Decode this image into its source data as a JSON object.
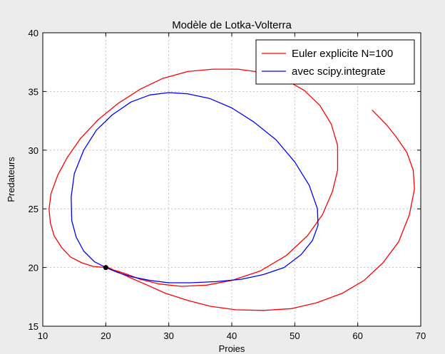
{
  "chart_data": {
    "type": "line",
    "title": "Modèle de Lotka-Volterra",
    "xlabel": "Proies",
    "ylabel": "Predateurs",
    "xlim": [
      10,
      70
    ],
    "ylim": [
      15,
      40
    ],
    "xticks": [
      10,
      20,
      30,
      40,
      50,
      60,
      70
    ],
    "yticks": [
      15,
      20,
      25,
      30,
      35,
      40
    ],
    "grid": true,
    "legend_position": "top-right",
    "series": [
      {
        "name": "Euler explicite N=100",
        "color": "#ff0000",
        "x": [
          20.0,
          18.0,
          16.2,
          14.4,
          13.0,
          11.8,
          11.2,
          11.0,
          11.3,
          12.4,
          13.9,
          16.0,
          18.8,
          22.0,
          25.5,
          29.0,
          33.0,
          37.0,
          41.0,
          45.0,
          48.5,
          51.5,
          54.0,
          55.8,
          56.8,
          56.8,
          56.0,
          54.4,
          52.0,
          48.6,
          44.5,
          40.0,
          36.0,
          32.0,
          28.5,
          25.5,
          23.0,
          21.2,
          20.4,
          20.1,
          20.7,
          22.0,
          24.0,
          26.6,
          29.5,
          33.0,
          36.6,
          40.6,
          45.0,
          49.5,
          53.5,
          57.5,
          61.0,
          64.0,
          66.5,
          68.2,
          69.0,
          68.8,
          67.8,
          66.0,
          64.5,
          62.3
        ],
        "y": [
          20.0,
          20.1,
          20.4,
          20.9,
          21.7,
          22.7,
          23.8,
          25.0,
          26.3,
          27.9,
          29.4,
          31.0,
          32.6,
          34.0,
          35.2,
          36.1,
          36.7,
          36.9,
          36.9,
          36.6,
          36.0,
          35.1,
          33.8,
          32.2,
          30.4,
          28.3,
          26.5,
          24.5,
          22.7,
          21.0,
          19.7,
          18.9,
          18.5,
          18.4,
          18.6,
          19.0,
          19.5,
          19.8,
          20.0,
          20.0,
          19.9,
          19.6,
          19.1,
          18.5,
          17.8,
          17.2,
          16.7,
          16.4,
          16.35,
          16.5,
          17.0,
          17.8,
          18.9,
          20.4,
          22.2,
          24.5,
          26.7,
          28.3,
          29.8,
          31.2,
          32.2,
          33.4
        ]
      },
      {
        "name": "avec scipy.integrate",
        "color": "#0000ff",
        "x": [
          20.0,
          18.2,
          16.5,
          15.3,
          14.6,
          14.5,
          15.0,
          16.5,
          18.5,
          21.0,
          24.0,
          27.0,
          30.0,
          33.0,
          36.5,
          40.0,
          43.5,
          47.0,
          50.0,
          52.3,
          53.6,
          53.7,
          52.8,
          51.0,
          48.3,
          45.0,
          41.5,
          37.5,
          33.5,
          30.0,
          27.0,
          24.2,
          21.8,
          20.0
        ],
        "y": [
          20.0,
          20.5,
          21.4,
          22.6,
          24.0,
          26.0,
          28.0,
          30.0,
          31.7,
          33.0,
          34.1,
          34.7,
          34.9,
          34.8,
          34.4,
          33.6,
          32.4,
          30.9,
          29.0,
          27.0,
          25.0,
          23.6,
          22.3,
          21.1,
          20.0,
          19.4,
          19.0,
          18.8,
          18.7,
          18.7,
          18.9,
          19.2,
          19.6,
          20.0
        ]
      }
    ],
    "annotations": [
      {
        "type": "point",
        "x": 20,
        "y": 20,
        "color": "#000000"
      }
    ]
  }
}
